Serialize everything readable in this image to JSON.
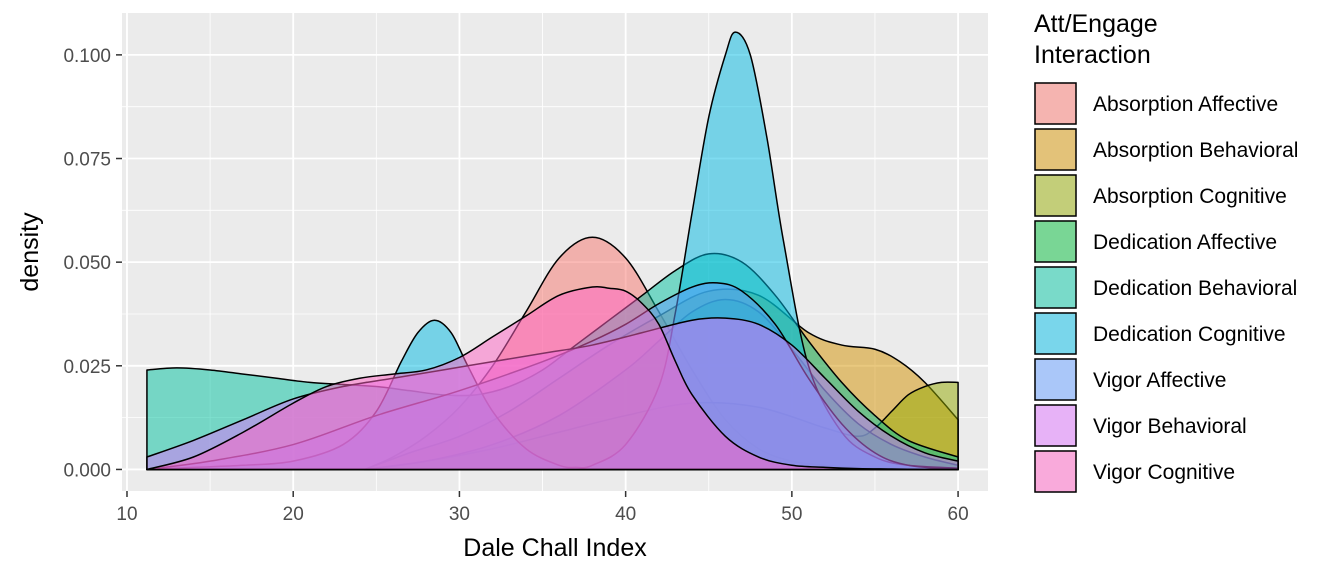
{
  "chart_data": {
    "type": "area",
    "subtype": "density",
    "xlabel": "Dale Chall Index",
    "ylabel": "density",
    "xlim": [
      9.7,
      61.8
    ],
    "ylim": [
      -0.0052,
      0.1101
    ],
    "x_ticks": [
      "10",
      "20",
      "30",
      "40",
      "50",
      "60"
    ],
    "y_ticks": [
      "0.000",
      "0.025",
      "0.050",
      "0.075",
      "0.100"
    ],
    "x_tick_values": [
      10,
      20,
      30,
      40,
      50,
      60
    ],
    "y_tick_values": [
      0,
      0.025,
      0.05,
      0.075,
      0.1
    ],
    "grid": true,
    "legend": {
      "title_lines": [
        "Att/Engage",
        "Interaction"
      ],
      "position": "right"
    },
    "series": [
      {
        "name": "Absorption Affective",
        "color": "#F8766D",
        "x": [
          24.3,
          26,
          28,
          30,
          32,
          34,
          36,
          38,
          40,
          42,
          44,
          46,
          48,
          50,
          52,
          54,
          56,
          58,
          60
        ],
        "y": [
          0.0,
          0.003,
          0.008,
          0.015,
          0.025,
          0.038,
          0.051,
          0.056,
          0.051,
          0.038,
          0.024,
          0.012,
          0.005,
          0.002,
          0.001,
          0.0005,
          0.0002,
          0.0,
          0.0
        ]
      },
      {
        "name": "Absorption Behavioral",
        "color": "#D39200",
        "x": [
          24.3,
          27,
          30,
          33,
          36,
          39,
          42,
          45,
          48,
          51,
          53,
          55,
          56.5,
          58,
          60
        ],
        "y": [
          0.0,
          0.004,
          0.008,
          0.014,
          0.022,
          0.03,
          0.037,
          0.043,
          0.042,
          0.033,
          0.03,
          0.029,
          0.026,
          0.021,
          0.012
        ]
      },
      {
        "name": "Absorption Cognitive",
        "color": "#93AA00",
        "x": [
          24.3,
          28,
          32,
          36,
          40,
          44,
          48,
          52,
          54,
          55,
          56,
          57,
          58,
          59,
          60
        ],
        "y": [
          0.0,
          0.002,
          0.005,
          0.009,
          0.013,
          0.016,
          0.015,
          0.01,
          0.008,
          0.01,
          0.014,
          0.018,
          0.02,
          0.021,
          0.021
        ]
      },
      {
        "name": "Dedication Affective",
        "color": "#00BA38",
        "x": [
          24.3,
          28,
          32,
          36,
          40,
          42,
          44,
          46,
          48,
          50,
          52,
          54,
          56,
          58,
          60
        ],
        "y": [
          0.0,
          0.002,
          0.006,
          0.013,
          0.024,
          0.031,
          0.038,
          0.041,
          0.038,
          0.029,
          0.019,
          0.011,
          0.006,
          0.003,
          0.001
        ]
      },
      {
        "name": "Dedication Behavioral",
        "color": "#00C19F",
        "x": [
          11.2,
          13,
          15,
          17,
          19,
          21,
          23,
          25,
          27,
          29,
          31,
          33,
          35,
          37,
          39,
          41,
          43,
          45,
          47,
          49,
          51,
          53,
          55,
          57,
          60
        ],
        "y": [
          0.024,
          0.0245,
          0.024,
          0.023,
          0.022,
          0.021,
          0.0205,
          0.02,
          0.019,
          0.018,
          0.018,
          0.02,
          0.024,
          0.03,
          0.036,
          0.042,
          0.048,
          0.052,
          0.05,
          0.042,
          0.031,
          0.021,
          0.013,
          0.007,
          0.003
        ]
      },
      {
        "name": "Dedication Cognitive",
        "color": "#00B9E3",
        "x": [
          11.2,
          14,
          17,
          20,
          23,
          25,
          26.5,
          27.5,
          28.5,
          29.5,
          30.5,
          32,
          34,
          36,
          37,
          38,
          40,
          42,
          43,
          44,
          45,
          46,
          46.6,
          47.5,
          48.5,
          49.5,
          51,
          53,
          55,
          57,
          60
        ],
        "y": [
          0.0,
          0.0005,
          0.001,
          0.002,
          0.006,
          0.014,
          0.026,
          0.033,
          0.036,
          0.033,
          0.025,
          0.014,
          0.005,
          0.001,
          0.0005,
          0.001,
          0.006,
          0.02,
          0.038,
          0.062,
          0.085,
          0.1,
          0.1055,
          0.1,
          0.08,
          0.055,
          0.025,
          0.009,
          0.003,
          0.001,
          0.0003
        ]
      },
      {
        "name": "Vigor Affective",
        "color": "#619CFF",
        "x": [
          11.2,
          15,
          20,
          25,
          30,
          35,
          38,
          40,
          42,
          44,
          45.5,
          47,
          49,
          51,
          53,
          55,
          57,
          60
        ],
        "y": [
          0.0,
          0.002,
          0.006,
          0.013,
          0.019,
          0.026,
          0.031,
          0.035,
          0.04,
          0.044,
          0.045,
          0.043,
          0.035,
          0.022,
          0.011,
          0.004,
          0.001,
          0.0
        ]
      },
      {
        "name": "Vigor Behavioral",
        "color": "#DB72FB",
        "x": [
          11.2,
          14,
          17,
          20,
          23,
          26,
          29,
          32,
          35,
          38,
          41,
          44,
          46,
          48,
          50,
          52,
          54,
          56,
          58,
          60
        ],
        "y": [
          0.003,
          0.007,
          0.012,
          0.017,
          0.02,
          0.022,
          0.024,
          0.026,
          0.028,
          0.03,
          0.033,
          0.036,
          0.0365,
          0.035,
          0.03,
          0.022,
          0.014,
          0.008,
          0.004,
          0.002
        ]
      },
      {
        "name": "Vigor Cognitive",
        "color": "#FF61C3",
        "x": [
          11.2,
          14,
          17,
          20,
          22,
          24,
          26,
          28,
          30,
          32,
          34,
          36,
          38,
          39,
          40,
          41,
          42,
          43,
          44,
          46,
          48,
          50,
          52,
          54,
          56,
          58,
          60
        ],
        "y": [
          0.0,
          0.003,
          0.009,
          0.016,
          0.02,
          0.022,
          0.023,
          0.024,
          0.027,
          0.032,
          0.037,
          0.042,
          0.044,
          0.0437,
          0.043,
          0.04,
          0.035,
          0.026,
          0.018,
          0.008,
          0.003,
          0.001,
          0.0005,
          0.0002,
          0.0001,
          0.0,
          0.0
        ]
      }
    ]
  }
}
